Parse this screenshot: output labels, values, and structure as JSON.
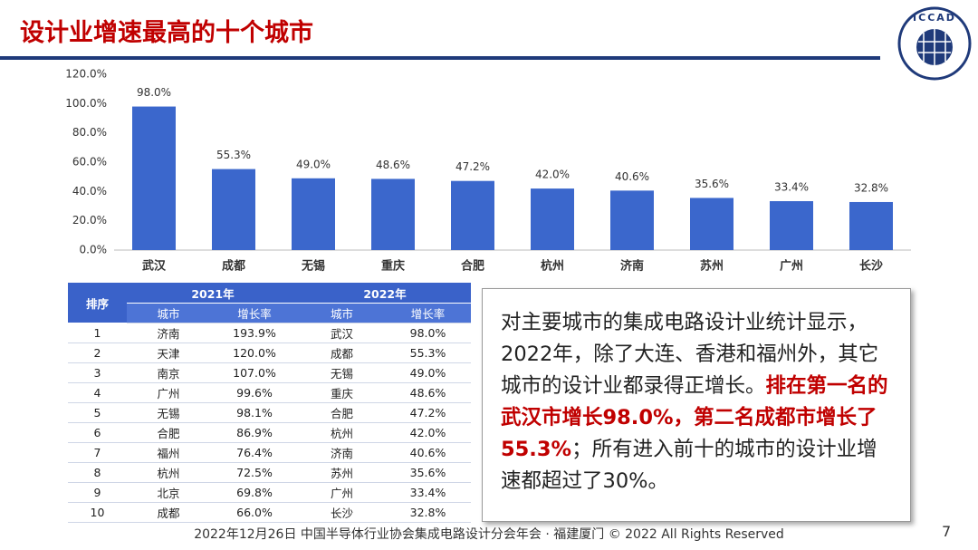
{
  "header": {
    "title": "设计业增速最高的十个城市",
    "logo": "ICCAD"
  },
  "chart_data": {
    "type": "bar",
    "categories": [
      "武汉",
      "成都",
      "无锡",
      "重庆",
      "合肥",
      "杭州",
      "济南",
      "苏州",
      "广州",
      "长沙"
    ],
    "values": [
      98.0,
      55.3,
      49.0,
      48.6,
      47.2,
      42.0,
      40.6,
      35.6,
      33.4,
      32.8
    ],
    "value_labels": [
      "98.0%",
      "55.3%",
      "49.0%",
      "48.6%",
      "47.2%",
      "42.0%",
      "40.6%",
      "35.6%",
      "33.4%",
      "32.8%"
    ],
    "color": "#3b67cc",
    "grid": false,
    "ylim": [
      0,
      120
    ],
    "yticks": [
      {
        "value": 0,
        "label": "0.0%"
      },
      {
        "value": 20,
        "label": "20.0%"
      },
      {
        "value": 40,
        "label": "40.0%"
      },
      {
        "value": 60,
        "label": "60.0%"
      },
      {
        "value": 80,
        "label": "80.0%"
      },
      {
        "value": 100,
        "label": "100.0%"
      },
      {
        "value": 120,
        "label": "120.0%"
      }
    ]
  },
  "table": {
    "header": [
      "排序",
      "2021年",
      "2022年"
    ],
    "subheader": [
      "城市",
      "增长率",
      "城市",
      "增长率"
    ],
    "rows": [
      [
        "1",
        "济南",
        "193.9%",
        "武汉",
        "98.0%"
      ],
      [
        "2",
        "天津",
        "120.0%",
        "成都",
        "55.3%"
      ],
      [
        "3",
        "南京",
        "107.0%",
        "无锡",
        "49.0%"
      ],
      [
        "4",
        "广州",
        "99.6%",
        "重庆",
        "48.6%"
      ],
      [
        "5",
        "无锡",
        "98.1%",
        "合肥",
        "47.2%"
      ],
      [
        "6",
        "合肥",
        "86.9%",
        "杭州",
        "42.0%"
      ],
      [
        "7",
        "福州",
        "76.4%",
        "济南",
        "40.6%"
      ],
      [
        "8",
        "杭州",
        "72.5%",
        "苏州",
        "35.6%"
      ],
      [
        "9",
        "北京",
        "69.8%",
        "广州",
        "33.4%"
      ],
      [
        "10",
        "成都",
        "66.0%",
        "长沙",
        "32.8%"
      ]
    ]
  },
  "text_box": {
    "parts": [
      {
        "text": "对主要城市的集成电路设计业统计显示，2022年，除了大连、香港和福州外，其它城市的设计业都录得正增长。",
        "highlight": false
      },
      {
        "text": "排在第一名的武汉市增长98.0%，第二名成都市增长了55.3%",
        "highlight": true
      },
      {
        "text": "；所有进入前十的城市的设计业增速都超过了30%。",
        "highlight": false
      }
    ]
  },
  "footer": {
    "text": "2022年12月26日 中国半导体行业协会集成电路设计分会年会 · 福建厦门 © 2022 All Rights Reserved",
    "page": "7"
  }
}
